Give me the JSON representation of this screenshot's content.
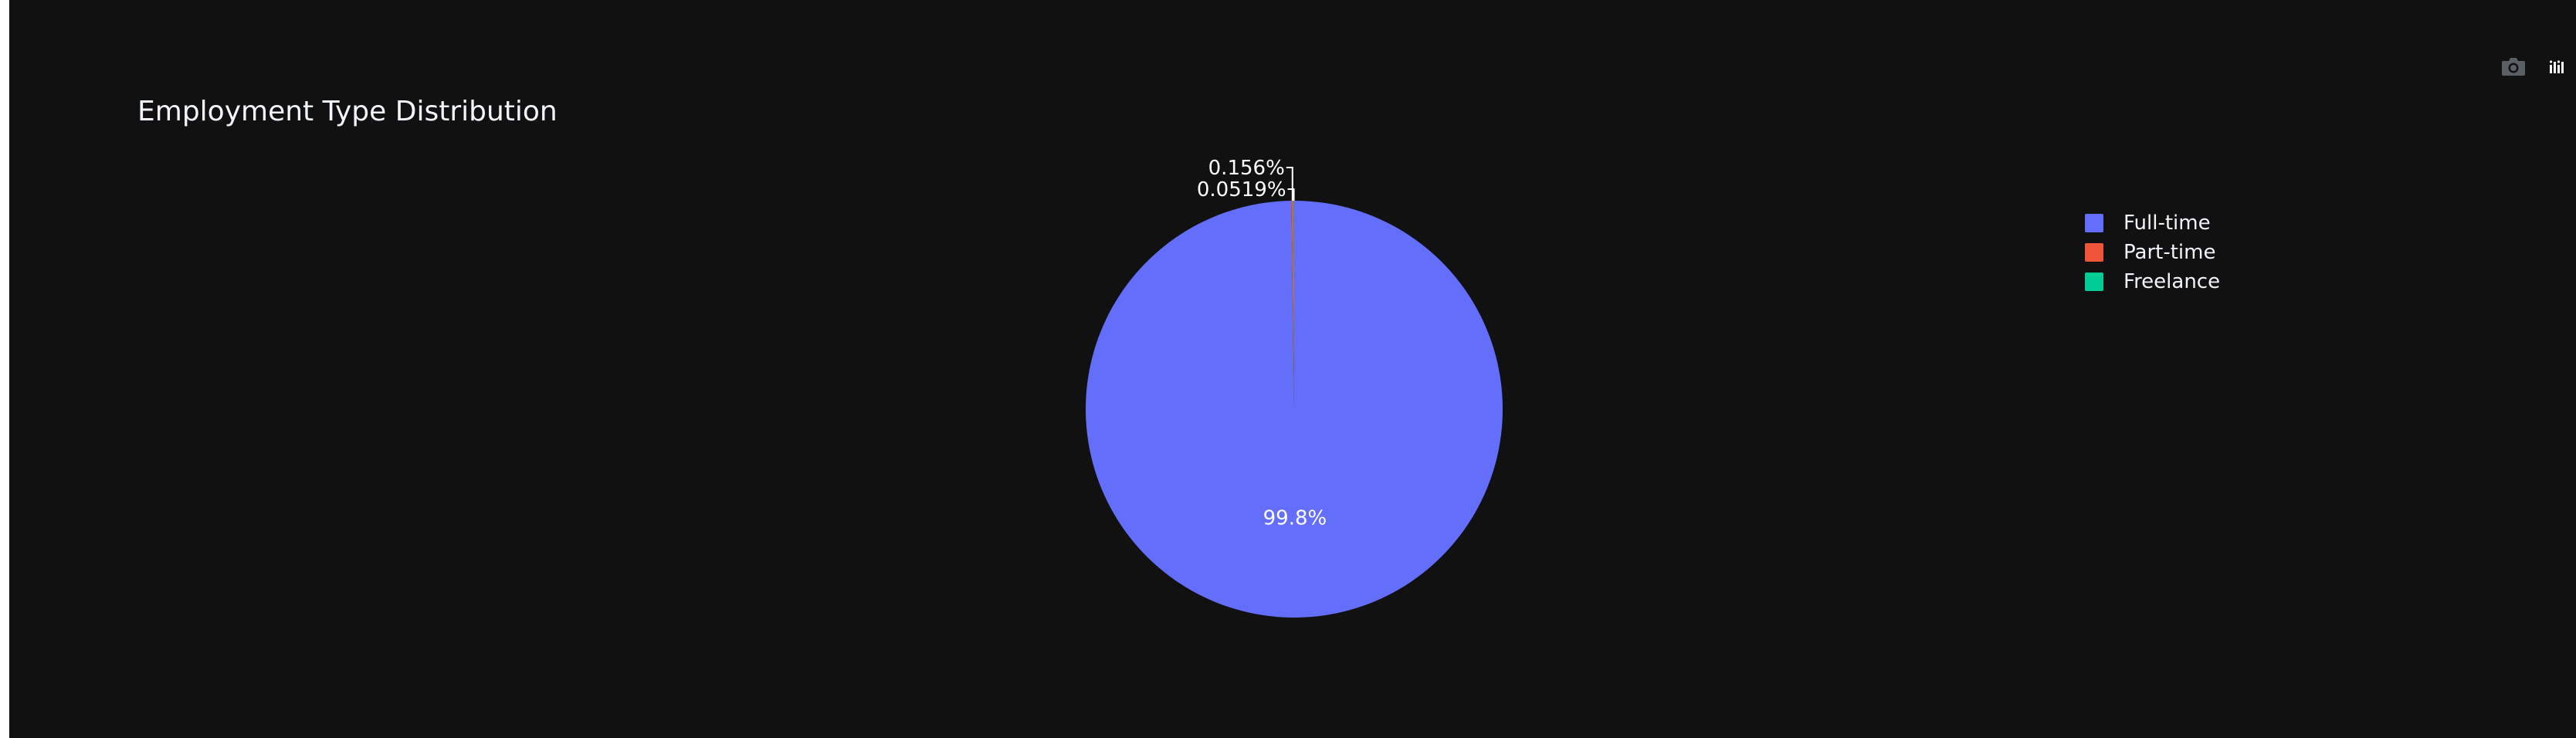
{
  "page": {
    "background": "#111111",
    "text_color": "#f2f5fa"
  },
  "toolbar": {
    "icons": [
      "camera-icon",
      "plotly-logo-icon"
    ]
  },
  "chart_data": {
    "type": "pie",
    "title": "Employment Type Distribution",
    "labels": [
      "Full-time",
      "Part-time",
      "Freelance"
    ],
    "values": [
      99.8,
      0.156,
      0.0519
    ],
    "text_labels": [
      "99.8%",
      "0.156%",
      "0.0519%"
    ],
    "colors": [
      "#636efa",
      "#ef553b",
      "#00cc96"
    ],
    "legend_position": "top-right",
    "direction": "clockwise",
    "start": "top"
  }
}
